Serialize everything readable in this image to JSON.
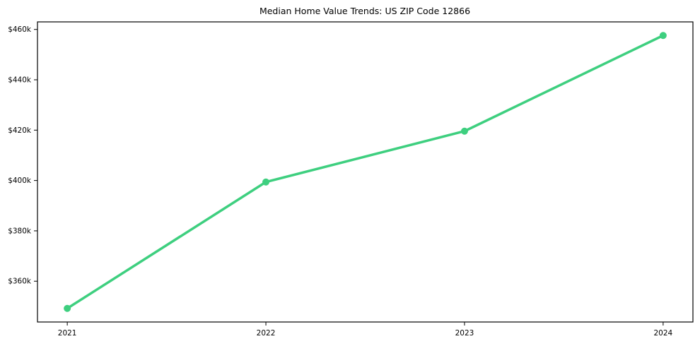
{
  "chart_data": {
    "type": "line",
    "title": "Median Home Value Trends: US ZIP Code 12866",
    "x": [
      "2021",
      "2022",
      "2023",
      "2024"
    ],
    "series": [
      {
        "name": "Median Home Value",
        "values": [
          349200,
          399400,
          419600,
          457600
        ]
      }
    ],
    "xlabel": "",
    "ylabel": "",
    "ylim": [
      343800,
      463000
    ],
    "xlim_units": [
      -0.15,
      3.15
    ],
    "y_ticks": [
      {
        "value": 360000,
        "label": "$360k"
      },
      {
        "value": 380000,
        "label": "$380k"
      },
      {
        "value": 400000,
        "label": "$400k"
      },
      {
        "value": 420000,
        "label": "$420k"
      },
      {
        "value": 440000,
        "label": "$440k"
      },
      {
        "value": 460000,
        "label": "$460k"
      }
    ],
    "grid": false,
    "legend": false,
    "background_color": "#ffffff",
    "spine_color": "#000000",
    "line_color": "#3ecf7f",
    "marker": "circle"
  }
}
